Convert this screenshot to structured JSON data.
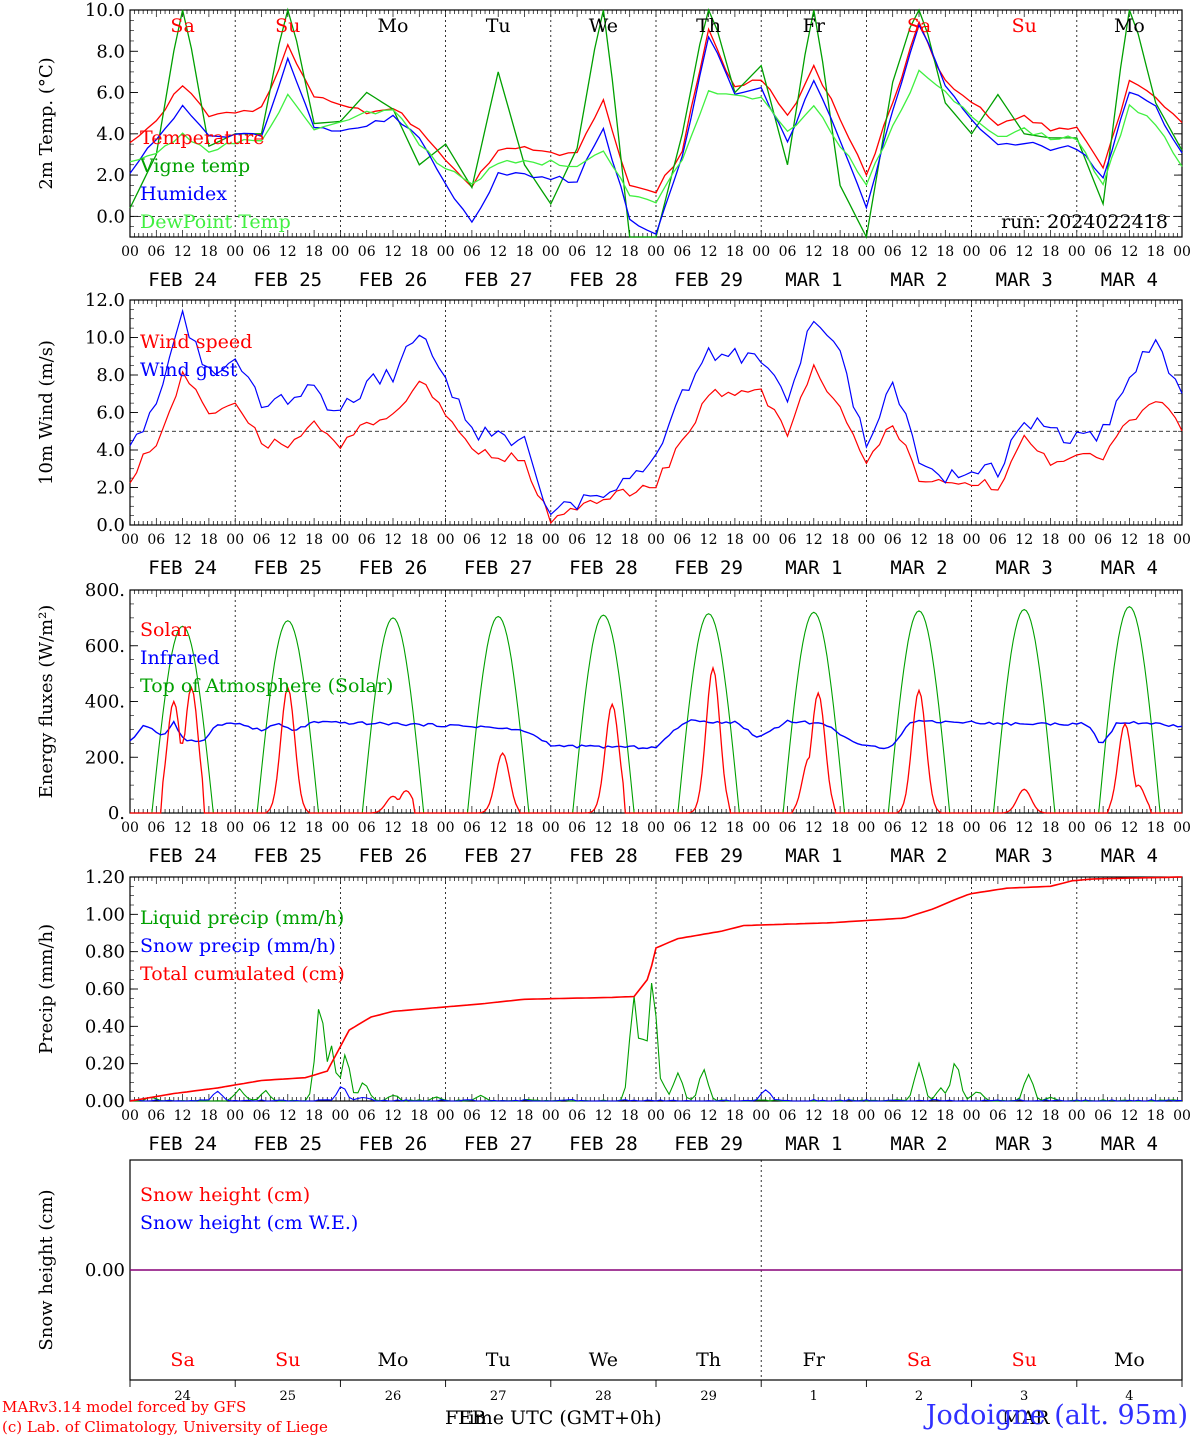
{
  "run_label": "run: 2024022418",
  "time_axis": {
    "hour_ticks": [
      "00",
      "06",
      "12",
      "18"
    ],
    "end_tick": "00",
    "dates": [
      "FEB 24",
      "FEB 25",
      "FEB 26",
      "FEB 27",
      "FEB 28",
      "FEB 29",
      "MAR  1",
      "MAR  2",
      "MAR  3",
      "MAR  4"
    ],
    "weekdays": [
      "Sa",
      "Su",
      "Mo",
      "Tu",
      "We",
      "Th",
      "Fr",
      "Sa",
      "Su",
      "Mo"
    ],
    "weekday_colors": [
      "#ff0000",
      "#ff0000",
      "#000000",
      "#000000",
      "#000000",
      "#000000",
      "#000000",
      "#ff0000",
      "#ff0000",
      "#000000"
    ],
    "day_numbers": [
      "24",
      "25",
      "26",
      "27",
      "28",
      "29",
      "1",
      "2",
      "3",
      "4"
    ],
    "month_labels": [
      "FEB",
      "MAR"
    ],
    "xlabel": "Time UTC (GMT+0h)"
  },
  "footer": {
    "credit_line1": "MARv3.14 model forced by GFS",
    "credit_line2": "(c) Lab. of Climatology, University of Liege",
    "station": "Jodoigne (alt. 95m)"
  },
  "chart_data": [
    {
      "type": "line",
      "ylabel": "2m Temp. (°C)",
      "ylim": [
        -1.0,
        10.0
      ],
      "yticks": [
        "0.0",
        "2.0",
        "4.0",
        "6.0",
        "8.0",
        "10.0"
      ],
      "reference_line": 0,
      "x_hours_knots": [
        0,
        6,
        12,
        18,
        24,
        30,
        36,
        42,
        48,
        54,
        60,
        66,
        72,
        78,
        84,
        90,
        96,
        102,
        108,
        114,
        120,
        126,
        132,
        138,
        144,
        150,
        156,
        162,
        168,
        174,
        180,
        186,
        192,
        198,
        204,
        210,
        216,
        222,
        228,
        234,
        240
      ],
      "series": [
        {
          "name": "Temperature",
          "color": "#ff0000",
          "values": [
            3.7,
            4.6,
            6.4,
            4.8,
            5.1,
            5.2,
            8.2,
            5.8,
            5.5,
            5.0,
            5.3,
            4.2,
            2.8,
            1.5,
            3.3,
            3.3,
            3.0,
            3.2,
            5.6,
            1.5,
            1.2,
            3.2,
            9.0,
            6.2,
            6.7,
            4.8,
            7.2,
            4.8,
            2.0,
            5.5,
            9.3,
            6.5,
            5.5,
            4.5,
            4.8,
            4.2,
            4.2,
            2.4,
            6.5,
            5.8,
            4.5
          ]
        },
        {
          "name": "Vigne temp",
          "color": "#00a000",
          "values": [
            0.4,
            3.0,
            10.5,
            3.4,
            4.0,
            4.0,
            10.5,
            4.5,
            4.6,
            6.0,
            5.2,
            2.5,
            3.5,
            1.4,
            7.0,
            2.5,
            0.6,
            3.3,
            10.5,
            -1.0,
            -1.0,
            4.0,
            10.5,
            6.0,
            7.3,
            2.5,
            10.5,
            1.5,
            -1.0,
            6.5,
            10.5,
            5.5,
            4.0,
            5.9,
            4.0,
            3.8,
            3.8,
            0.6,
            10.5,
            5.5,
            3.2
          ]
        },
        {
          "name": "Humidex",
          "color": "#0000ff",
          "values": [
            2.2,
            3.7,
            5.3,
            3.8,
            4.0,
            4.0,
            7.6,
            4.4,
            4.1,
            4.4,
            4.8,
            3.8,
            1.5,
            -0.3,
            2.0,
            2.0,
            1.9,
            1.7,
            4.3,
            -0.1,
            -0.9,
            2.9,
            8.8,
            6.0,
            6.2,
            3.6,
            6.6,
            3.7,
            0.5,
            5.1,
            9.3,
            6.4,
            4.8,
            3.4,
            3.6,
            3.3,
            3.3,
            1.9,
            6.0,
            5.3,
            3.0
          ]
        },
        {
          "name": "DewPoint Temp",
          "color": "#40f040",
          "values": [
            2.7,
            3.0,
            4.0,
            3.2,
            3.6,
            3.6,
            5.8,
            4.3,
            4.6,
            5.0,
            5.2,
            3.5,
            2.3,
            1.6,
            2.6,
            2.6,
            2.6,
            2.5,
            3.2,
            1.0,
            0.7,
            2.7,
            6.0,
            5.8,
            5.7,
            4.0,
            5.4,
            3.4,
            1.6,
            4.3,
            7.0,
            6.0,
            4.8,
            3.9,
            4.2,
            3.8,
            3.8,
            1.5,
            5.3,
            4.5,
            2.5
          ]
        }
      ]
    },
    {
      "type": "line",
      "ylabel": "10m Wind (m/s)",
      "ylim": [
        0.0,
        12.0
      ],
      "yticks": [
        "0.0",
        "2.0",
        "4.0",
        "6.0",
        "8.0",
        "10.0",
        "12.0"
      ],
      "reference_line": 5,
      "x_hours_knots": [
        0,
        6,
        12,
        18,
        24,
        30,
        36,
        42,
        48,
        54,
        60,
        66,
        72,
        78,
        84,
        90,
        96,
        102,
        108,
        114,
        120,
        126,
        132,
        138,
        144,
        150,
        156,
        162,
        168,
        174,
        180,
        186,
        192,
        198,
        204,
        210,
        216,
        222,
        228,
        234,
        240
      ],
      "series": [
        {
          "name": "Wind speed",
          "color": "#ff0000",
          "values": [
            2.5,
            4.5,
            8.0,
            6.0,
            6.8,
            4.4,
            4.3,
            5.4,
            4.2,
            5.4,
            6.0,
            7.8,
            5.8,
            4.2,
            3.7,
            3.4,
            0.3,
            0.8,
            1.5,
            1.7,
            2.2,
            4.5,
            7.0,
            6.8,
            7.2,
            4.8,
            8.4,
            6.2,
            3.3,
            5.5,
            2.5,
            2.3,
            2.4,
            2.0,
            4.5,
            3.2,
            3.6,
            3.5,
            5.5,
            6.8,
            5.0
          ]
        },
        {
          "name": "Wind gust",
          "color": "#0000ff",
          "values": [
            3.8,
            6.3,
            11.0,
            8.0,
            8.8,
            6.6,
            6.8,
            7.2,
            5.9,
            7.5,
            8.0,
            10.3,
            7.8,
            5.0,
            4.8,
            4.5,
            0.5,
            1.2,
            1.9,
            2.5,
            3.4,
            6.8,
            9.2,
            9.0,
            9.0,
            6.6,
            11.0,
            9.0,
            4.4,
            7.6,
            3.5,
            2.7,
            3.1,
            3.0,
            5.8,
            4.8,
            4.7,
            5.0,
            7.9,
            10.2,
            6.7
          ]
        }
      ]
    },
    {
      "type": "area",
      "ylabel": "Energy fluxes (W/m²)",
      "ylim": [
        0,
        800
      ],
      "yticks": [
        "0.",
        "200.",
        "400.",
        "600.",
        "800."
      ],
      "legend": [
        "Solar",
        "Infrared",
        "Top of Atmosphere (Solar)"
      ],
      "legend_colors": [
        "#ff0000",
        "#0000ff",
        "#00a000"
      ],
      "toa_peaks": [
        670,
        690,
        700,
        705,
        710,
        715,
        720,
        725,
        730,
        740
      ],
      "solar_daily": [
        {
          "peaks": [
            {
              "h": 10,
              "v": 400
            },
            {
              "h": 12,
              "v": 250
            },
            {
              "h": 14,
              "v": 450
            }
          ]
        },
        {
          "peaks": [
            {
              "h": 12,
              "v": 450
            }
          ]
        },
        {
          "peaks": [
            {
              "h": 12,
              "v": 60
            },
            {
              "h": 15,
              "v": 80
            }
          ]
        },
        {
          "peaks": [
            {
              "h": 13,
              "v": 215
            }
          ]
        },
        {
          "peaks": [
            {
              "h": 14,
              "v": 390
            }
          ]
        },
        {
          "peaks": [
            {
              "h": 13,
              "v": 520
            }
          ]
        },
        {
          "peaks": [
            {
              "h": 11,
              "v": 200
            },
            {
              "h": 13,
              "v": 430
            }
          ]
        },
        {
          "peaks": [
            {
              "h": 12,
              "v": 440
            }
          ]
        },
        {
          "peaks": [
            {
              "h": 12,
              "v": 85
            }
          ]
        },
        {
          "peaks": [
            {
              "h": 11,
              "v": 320
            },
            {
              "h": 14,
              "v": 100
            }
          ]
        }
      ],
      "infrared_knots": [
        [
          0,
          255
        ],
        [
          4,
          320
        ],
        [
          9,
          275
        ],
        [
          12,
          325
        ],
        [
          15,
          255
        ],
        [
          20,
          260
        ],
        [
          24,
          320
        ],
        [
          30,
          320
        ],
        [
          36,
          295
        ],
        [
          40,
          320
        ],
        [
          45,
          295
        ],
        [
          50,
          325
        ],
        [
          72,
          320
        ],
        [
          96,
          310
        ],
        [
          108,
          295
        ],
        [
          116,
          240
        ],
        [
          144,
          235
        ],
        [
          152,
          330
        ],
        [
          166,
          325
        ],
        [
          172,
          270
        ],
        [
          180,
          330
        ],
        [
          190,
          320
        ],
        [
          200,
          240
        ],
        [
          208,
          235
        ],
        [
          214,
          330
        ],
        [
          232,
          325
        ],
        [
          238,
          320
        ],
        [
          252,
          320
        ],
        [
          262,
          320
        ],
        [
          266,
          240
        ],
        [
          270,
          320
        ],
        [
          276,
          325
        ],
        [
          288,
          310
        ]
      ]
    },
    {
      "type": "line",
      "ylabel": "Precip (mm/h)",
      "ylim": [
        0.0,
        1.2
      ],
      "yticks": [
        "0.00",
        "0.20",
        "0.40",
        "0.60",
        "0.80",
        "1.00",
        "1.20"
      ],
      "series": [
        {
          "name": "Liquid precip (mm/h)",
          "color": "#00a000",
          "spikes": [
            [
              6,
              0.02
            ],
            [
              30,
              0.06
            ],
            [
              37,
              0.05
            ],
            [
              52,
              0.52
            ],
            [
              55,
              0.3
            ],
            [
              59,
              0.25
            ],
            [
              64,
              0.1
            ],
            [
              72,
              0.03
            ],
            [
              84,
              0.02
            ],
            [
              96,
              0.03
            ],
            [
              138,
              0.56
            ],
            [
              140,
              0.35
            ],
            [
              143,
              0.64
            ],
            [
              146,
              0.08
            ],
            [
              150,
              0.15
            ],
            [
              157,
              0.17
            ],
            [
              216,
              0.2
            ],
            [
              222,
              0.07
            ],
            [
              226,
              0.21
            ],
            [
              232,
              0.05
            ],
            [
              246,
              0.14
            ],
            [
              252,
              0.02
            ]
          ]
        },
        {
          "name": "Snow precip (mm/h)",
          "color": "#0000ff",
          "spikes": [
            [
              24,
              0.05
            ],
            [
              58,
              0.08
            ],
            [
              64,
              0.02
            ],
            [
              174,
              0.06
            ]
          ]
        },
        {
          "name": "Total cumulated (cm)",
          "color": "#ff0000",
          "knots": [
            [
              0,
              0.0
            ],
            [
              12,
              0.04
            ],
            [
              24,
              0.07
            ],
            [
              36,
              0.11
            ],
            [
              48,
              0.125
            ],
            [
              54,
              0.16
            ],
            [
              60,
              0.38
            ],
            [
              66,
              0.45
            ],
            [
              72,
              0.48
            ],
            [
              96,
              0.52
            ],
            [
              108,
              0.545
            ],
            [
              132,
              0.555
            ],
            [
              138,
              0.56
            ],
            [
              142,
              0.66
            ],
            [
              144,
              0.82
            ],
            [
              150,
              0.87
            ],
            [
              156,
              0.89
            ],
            [
              162,
              0.91
            ],
            [
              168,
              0.94
            ],
            [
              192,
              0.955
            ],
            [
              204,
              0.97
            ],
            [
              212,
              0.98
            ],
            [
              220,
              1.03
            ],
            [
              226,
              1.08
            ],
            [
              230,
              1.11
            ],
            [
              240,
              1.14
            ],
            [
              252,
              1.15
            ],
            [
              258,
              1.18
            ],
            [
              264,
              1.19
            ],
            [
              288,
              1.2
            ]
          ]
        }
      ]
    },
    {
      "type": "line",
      "ylabel": "Snow height (cm)",
      "yticks": [
        "0.00"
      ],
      "series": [
        {
          "name": "Snow height (cm)",
          "color": "#ff0000",
          "values": [
            0
          ]
        },
        {
          "name": "Snow height (cm W.E.)",
          "color": "#0000ff",
          "values": [
            0
          ]
        }
      ]
    }
  ]
}
